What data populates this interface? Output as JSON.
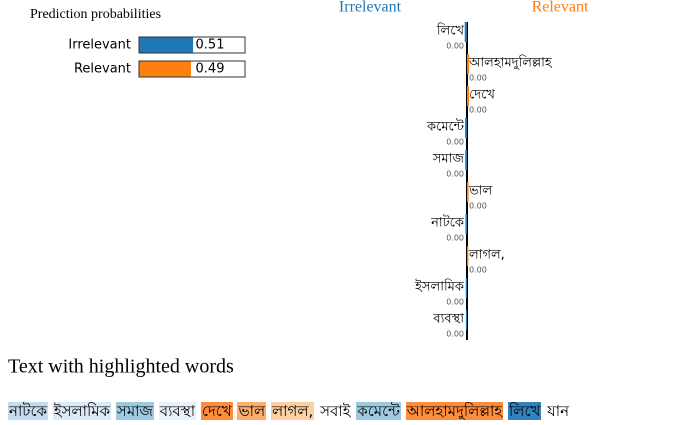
{
  "prediction_probabilities": {
    "title": "Prediction probabilities",
    "categories": [
      "Irrelevant",
      "Relevant"
    ],
    "values": [
      0.51,
      0.49
    ],
    "colors": [
      "#1f77b4",
      "#ff7f0e"
    ]
  },
  "feature_weights": {
    "classes": [
      "Irrelevant",
      "Relevant"
    ],
    "colors": [
      "#1f77b4",
      "#ff7f0e"
    ],
    "features": [
      "লিখে",
      "আলহামদুলিল্লাহ",
      "দেখে",
      "কমেন্টে",
      "সমাজ",
      "ভাল",
      "নাটকে",
      "লাগল,",
      "ইসলামিক",
      "ব্যবস্থা"
    ],
    "values": [
      -0.0045,
      0.0042,
      0.004,
      -0.0038,
      -0.0035,
      0.0032,
      -0.003,
      0.0028,
      -0.0025,
      -0.0022
    ],
    "value_labels": [
      "0.00",
      "0.00",
      "0.00",
      "0.00",
      "0.00",
      "0.00",
      "0.00",
      "0.00",
      "0.00",
      "0.00"
    ]
  },
  "highlighted_text": {
    "title": "Text with highlighted words",
    "words": [
      "নাটকে",
      "ইসলামিক",
      "সমাজ",
      "ব্যবস্থা",
      "দেখে",
      "ভাল",
      "লাগল,",
      "সবাই",
      "কমেন্টে",
      "আলহামদুলিল্লাহ",
      "লিখে",
      "যান"
    ],
    "colors": [
      "#c6dbef",
      "#dbe8f5",
      "#9ecae1",
      "#e8f0f9",
      "#fd8d3c",
      "#fdae6b",
      "#fdd0a2",
      null,
      "#9ecae1",
      "#fd8d3c",
      "#3182bd",
      null
    ]
  }
}
